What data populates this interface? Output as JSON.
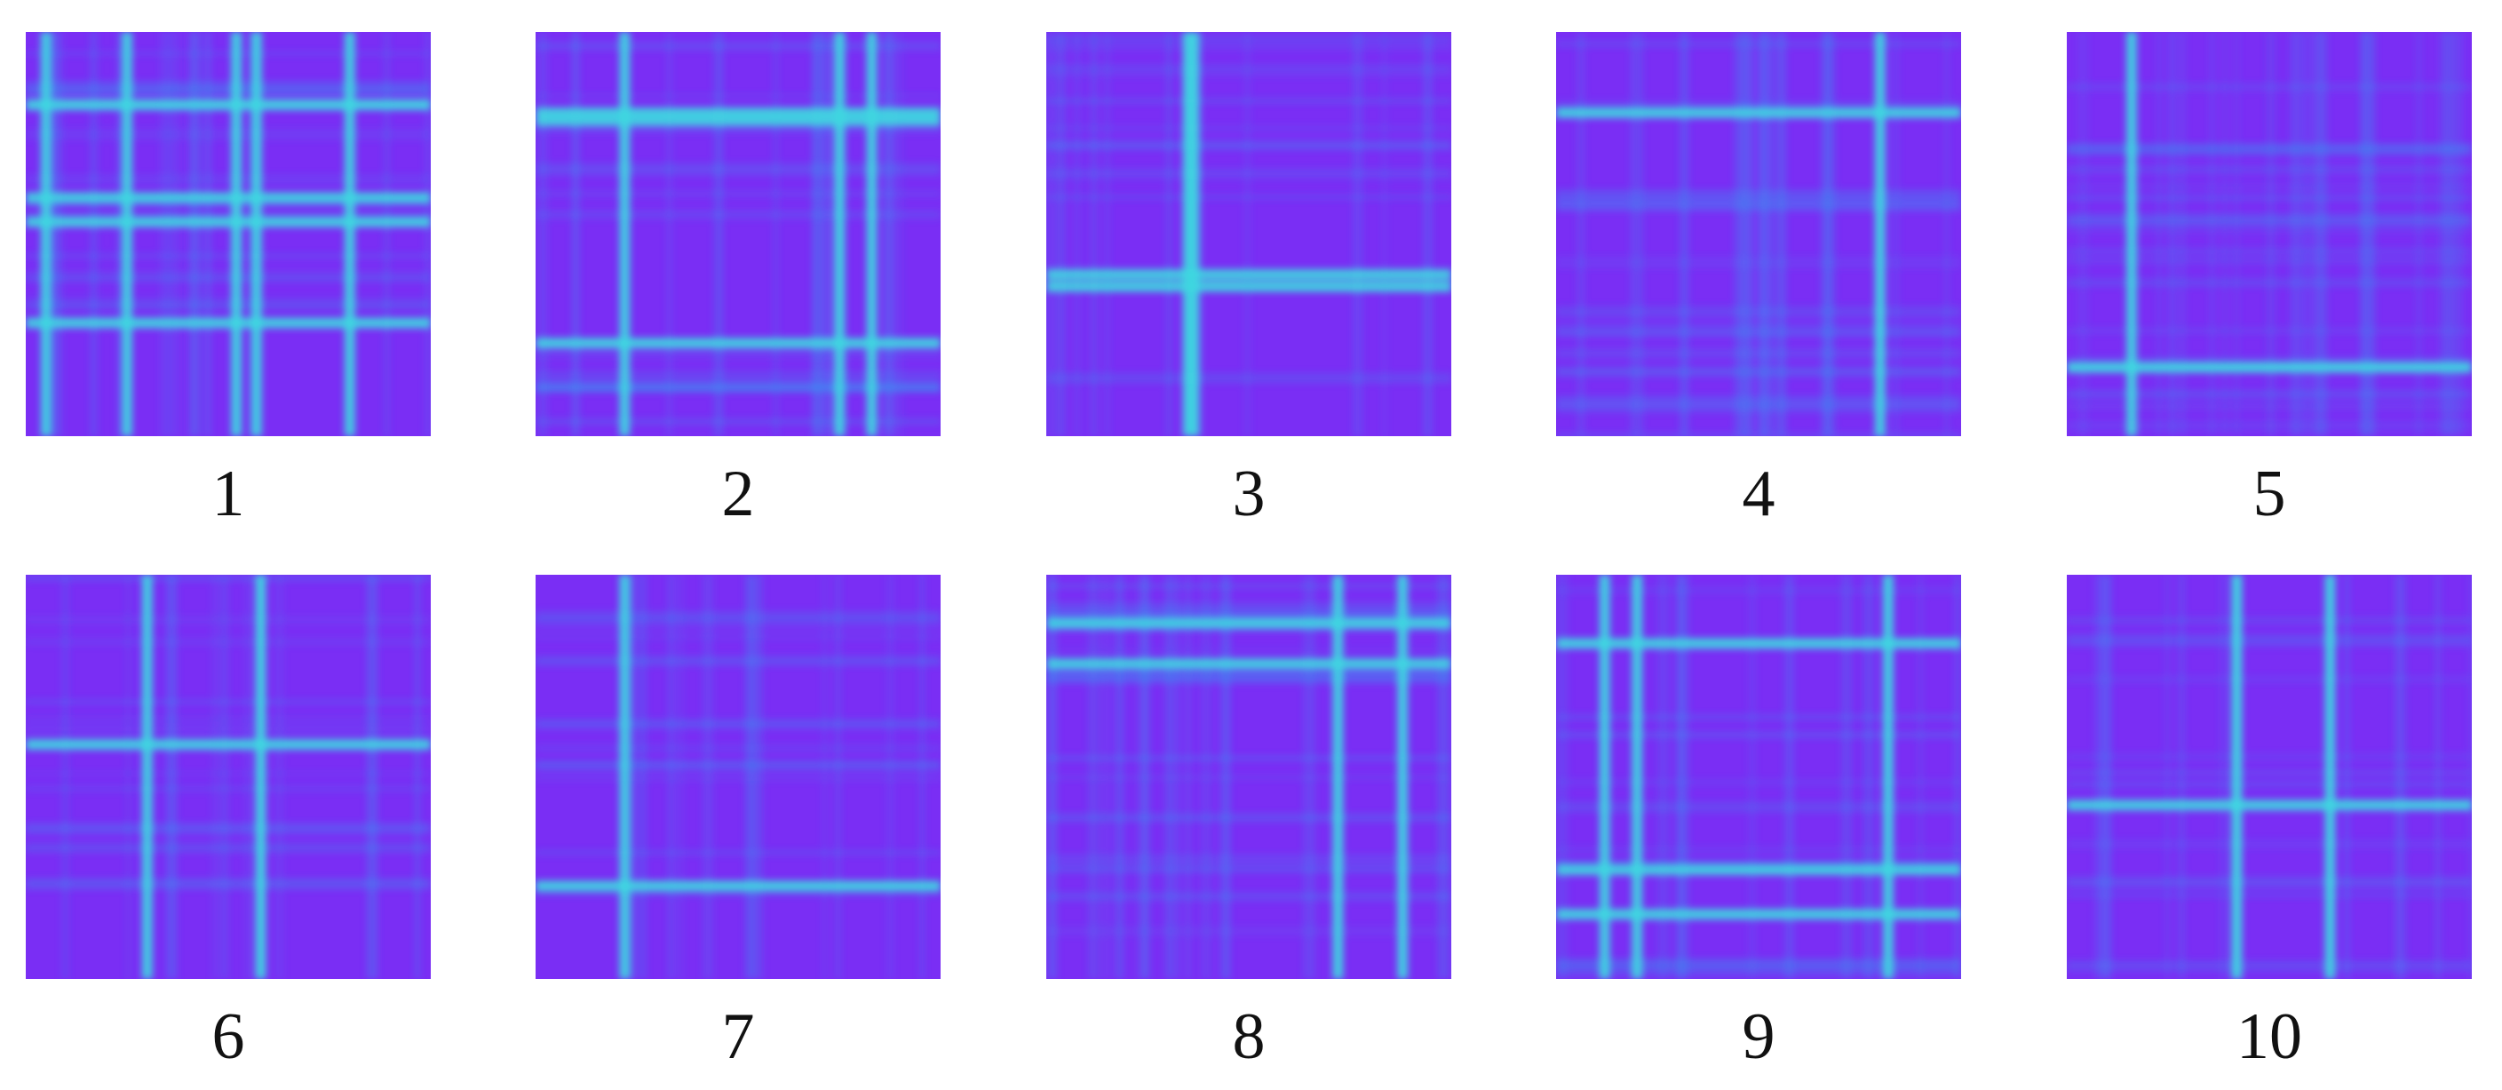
{
  "panels": [
    {
      "label": "1"
    },
    {
      "label": "2"
    },
    {
      "label": "3"
    },
    {
      "label": "4"
    },
    {
      "label": "5"
    },
    {
      "label": "6"
    },
    {
      "label": "7"
    },
    {
      "label": "8"
    },
    {
      "label": "9"
    },
    {
      "label": "10"
    }
  ]
}
